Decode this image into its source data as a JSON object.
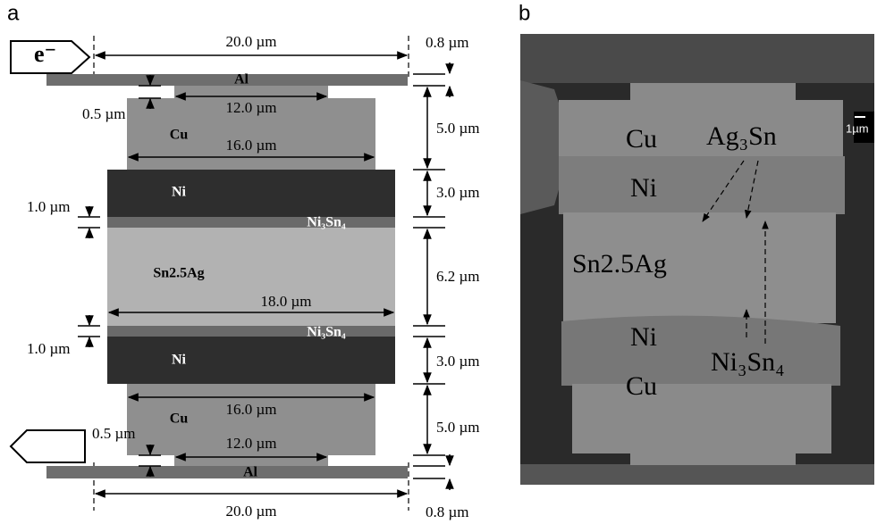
{
  "panel_a": {
    "label": "a",
    "electron": "e⁻",
    "layers": {
      "al_top": "Al",
      "cu_top": "Cu",
      "ni_top": "Ni",
      "imc_top": "Ni₃Sn₄",
      "solder": "Sn2.5Ag",
      "imc_bottom": "Ni₃Sn₄",
      "ni_bottom": "Ni",
      "cu_bottom": "Cu",
      "al_bottom": "Al"
    },
    "dimensions": [
      "20.0 µm",
      "0.8 µm",
      "0.5 µm",
      "12.0 µm",
      "5.0 µm",
      "16.0 µm",
      "3.0 µm",
      "1.0 µm",
      "6.2 µm",
      "18.0 µm",
      "1.0 µm",
      "3.0 µm",
      "16.0 µm",
      "5.0 µm",
      "0.5 µm",
      "12.0 µm",
      "20.0 µm",
      "0.8 µm"
    ]
  },
  "panel_b": {
    "label": "b",
    "labels": [
      "Cu",
      "Ag₃Sn",
      "Ni",
      "Sn2.5Ag",
      "Ni",
      "Ni₃Sn₄",
      "Cu"
    ],
    "scale_bar": "1µm"
  }
}
